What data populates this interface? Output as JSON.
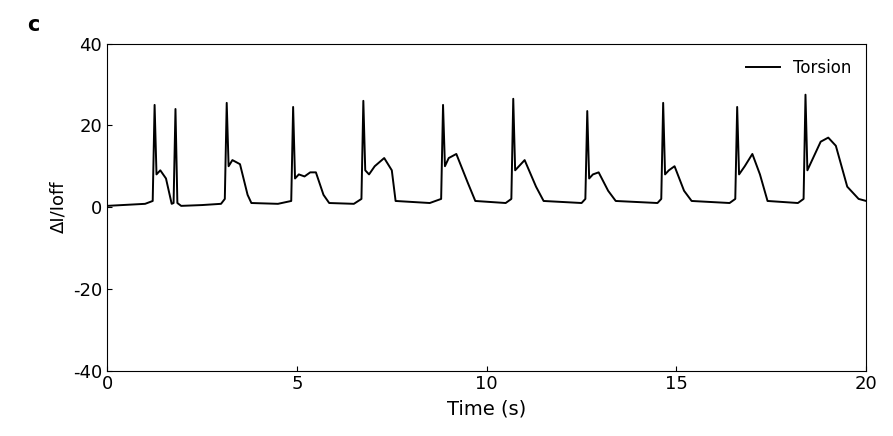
{
  "chart_data": {
    "type": "line",
    "title": "c",
    "x_label": "Time (s)",
    "y_label": "ΔI/Ioff",
    "x": [
      0,
      1.0,
      1.2,
      1.25,
      1.3,
      1.4,
      1.55,
      1.7,
      1.75,
      1.8,
      1.85,
      1.95,
      2.5,
      3.0,
      3.1,
      3.15,
      3.2,
      3.3,
      3.5,
      3.7,
      3.8,
      4.5,
      4.85,
      4.9,
      4.95,
      5.05,
      5.2,
      5.35,
      5.5,
      5.7,
      5.85,
      6.5,
      6.7,
      6.75,
      6.8,
      6.9,
      7.05,
      7.3,
      7.5,
      7.6,
      8.5,
      8.8,
      8.85,
      8.9,
      9.0,
      9.2,
      9.5,
      9.7,
      10.5,
      10.65,
      10.7,
      10.75,
      10.85,
      11.0,
      11.3,
      11.5,
      12.5,
      12.6,
      12.65,
      12.7,
      12.8,
      12.95,
      13.2,
      13.4,
      14.5,
      14.6,
      14.65,
      14.7,
      14.8,
      14.95,
      15.2,
      15.4,
      16.4,
      16.55,
      16.6,
      16.65,
      16.8,
      17.0,
      17.2,
      17.4,
      18.2,
      18.35,
      18.4,
      18.45,
      18.6,
      18.8,
      19.0,
      19.2,
      19.5,
      19.8,
      20.0
    ],
    "series": [
      {
        "name": "Torsion",
        "color": "#000000",
        "values": [
          0.3,
          0.8,
          1.5,
          25,
          8,
          9,
          7,
          0.8,
          1,
          24,
          1,
          0.3,
          0.5,
          0.8,
          2,
          25.5,
          10,
          11.5,
          10.5,
          3,
          1,
          0.8,
          1.5,
          24.5,
          7,
          8,
          7.5,
          8.5,
          8.5,
          3,
          1,
          0.8,
          2,
          26,
          9,
          8,
          10,
          12,
          9,
          1.5,
          1,
          2,
          25,
          10,
          12,
          13,
          6,
          1.5,
          1,
          2,
          26.5,
          9,
          10,
          11.5,
          5,
          1.5,
          1,
          2,
          23.5,
          7,
          8,
          8.5,
          4,
          1.5,
          1,
          2,
          25.5,
          8,
          9,
          10,
          4,
          1.5,
          1,
          2,
          24.5,
          8,
          10,
          13,
          8,
          1.5,
          1,
          2,
          27.5,
          9,
          12,
          16,
          17,
          15,
          5,
          2,
          1.5
        ]
      }
    ],
    "xlim": [
      0,
      20
    ],
    "xticks": [
      0,
      5,
      10,
      15,
      20
    ],
    "ylim": [
      -40,
      40
    ],
    "yticks": [
      -40,
      -20,
      0,
      20,
      40
    ],
    "legend": "upper right",
    "grid": false
  }
}
